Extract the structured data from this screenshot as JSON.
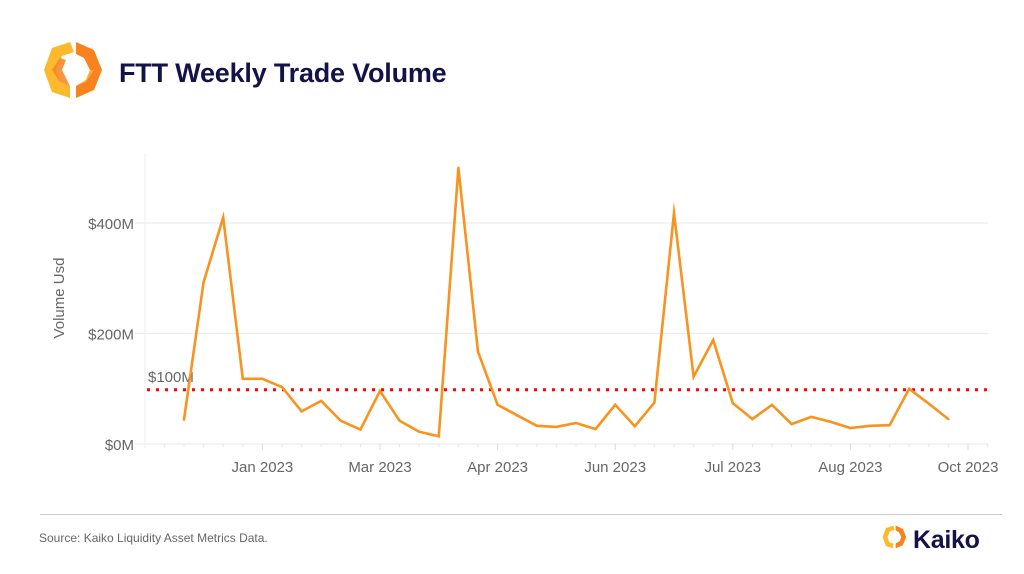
{
  "header": {
    "title": "FTT Weekly Trade Volume",
    "logo_icon": "kaiko-hexagon-logo-icon"
  },
  "footer": {
    "source": "Source: Kaiko Liquidity Asset Metrics Data.",
    "brand": "Kaiko",
    "brand_icon": "kaiko-hexagon-logo-icon"
  },
  "colors": {
    "line": "#F7931E",
    "reference_line": "#FF0000",
    "title": "#131347",
    "logo_light": "#FDB92E",
    "logo_dark": "#F7821E"
  },
  "chart_data": {
    "type": "line",
    "title": "FTT Weekly Trade Volume",
    "xlabel": "",
    "ylabel": "Volume Usd",
    "ylim": [
      0,
      500
    ],
    "grid": true,
    "y_ticks": [
      {
        "value": 0,
        "label": "$0M"
      },
      {
        "value": 200,
        "label": "$200M"
      },
      {
        "value": 400,
        "label": "$400M"
      }
    ],
    "x_ticks": [
      {
        "index": 4,
        "label": "Jan 2023"
      },
      {
        "index": 10,
        "label": "Mar 2023"
      },
      {
        "index": 16,
        "label": "Apr 2023"
      },
      {
        "index": 22,
        "label": "Jun 2023"
      },
      {
        "index": 28,
        "label": "Jul 2023"
      },
      {
        "index": 34,
        "label": "Aug 2023"
      },
      {
        "index": 40,
        "label": "Oct 2023"
      }
    ],
    "reference_line": {
      "value": 100,
      "label": "$100M",
      "style": "dotted"
    },
    "series": [
      {
        "name": "Volume Usd (M)",
        "values": [
          44,
          293,
          410,
          118,
          118,
          103,
          59,
          78,
          42,
          26,
          96,
          42,
          22,
          14,
          500,
          167,
          71,
          52,
          33,
          31,
          38,
          27,
          71,
          32,
          75,
          418,
          122,
          188,
          74,
          45,
          71,
          36,
          49,
          40,
          29,
          33,
          34,
          100,
          73,
          45
        ]
      }
    ]
  }
}
